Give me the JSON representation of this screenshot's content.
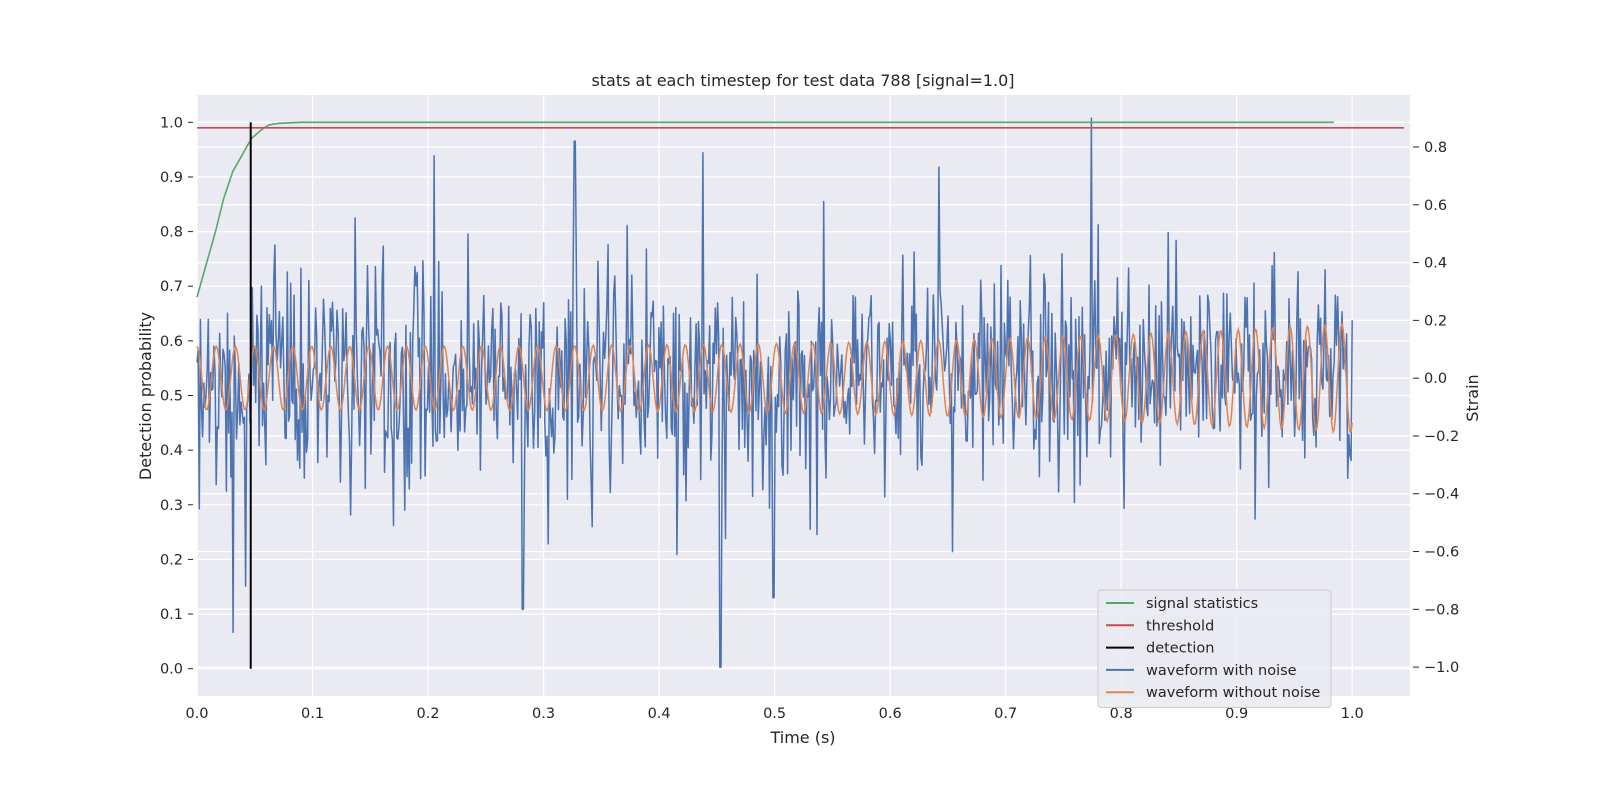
{
  "chart_data": {
    "type": "line",
    "title": "stats at each timestep for test data 788 [signal=1.0]",
    "xlabel": "Time (s)",
    "ylabel": "Detection probability",
    "y2label": "Strain",
    "xlim": [
      0.0,
      1.05
    ],
    "ylim": [
      -0.05,
      1.05
    ],
    "y2lim": [
      -1.1,
      0.98
    ],
    "x_ticks": [
      "0.0",
      "0.1",
      "0.2",
      "0.3",
      "0.4",
      "0.5",
      "0.6",
      "0.7",
      "0.8",
      "0.9",
      "1.0"
    ],
    "y_ticks": [
      "0.0",
      "0.1",
      "0.2",
      "0.3",
      "0.4",
      "0.5",
      "0.6",
      "0.7",
      "0.8",
      "0.9",
      "1.0"
    ],
    "y2_ticks": [
      "−1.0",
      "−0.8",
      "−0.6",
      "−0.4",
      "−0.2",
      "0.0",
      "0.2",
      "0.4",
      "0.6",
      "0.8"
    ],
    "grid": true,
    "legend_position": "lower-right",
    "series": [
      {
        "name": "signal statistics",
        "color": "#55a868",
        "axis": "left",
        "x": [
          0.0,
          0.008,
          0.016,
          0.023,
          0.031,
          0.039,
          0.047,
          0.055,
          0.062,
          0.07,
          0.078,
          0.09,
          0.11,
          0.2,
          0.4,
          0.6,
          0.8,
          0.984
        ],
        "y": [
          0.68,
          0.74,
          0.8,
          0.86,
          0.91,
          0.94,
          0.97,
          0.985,
          0.995,
          0.998,
          0.999,
          1.0,
          1.0,
          1.0,
          1.0,
          1.0,
          1.0,
          1.0
        ]
      },
      {
        "name": "threshold",
        "color": "#c44e52",
        "axis": "left",
        "x": [
          0.0,
          1.045
        ],
        "y": [
          0.99,
          0.99
        ]
      },
      {
        "name": "detection",
        "color": "#000000",
        "axis": "left",
        "x": [
          0.0465,
          0.0465
        ],
        "y": [
          0.0,
          1.0
        ]
      },
      {
        "name": "waveform with noise",
        "color": "#4c72b0",
        "axis": "right",
        "t_start": 0.0,
        "t_end": 1.0,
        "samples": 1024,
        "peaks": [
          [
            0.774,
            0.9
          ],
          [
            0.453,
            -1.0
          ],
          [
            0.031,
            -0.88
          ],
          [
            0.042,
            -0.72
          ],
          [
            0.282,
            -0.8
          ],
          [
            0.2055,
            0.77
          ],
          [
            0.327,
            0.82
          ],
          [
            0.438,
            0.78
          ],
          [
            0.499,
            -0.76
          ],
          [
            0.6425,
            0.73
          ]
        ]
      },
      {
        "name": "waveform without noise",
        "color": "#dd8452",
        "axis": "right",
        "t_start": 0.0,
        "t_end": 1.0,
        "samples": 1024,
        "amplitude_start": 0.11,
        "amplitude_end": 0.19,
        "cycles": 60
      }
    ]
  }
}
